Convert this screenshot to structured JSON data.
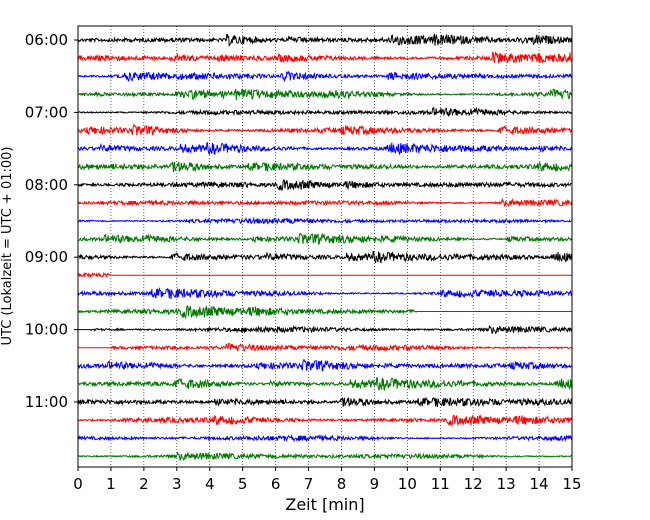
{
  "chart_data": {
    "type": "line",
    "subtype": "helicorder",
    "xlabel": "Zeit  [min]",
    "ylabel": "UTC (Lokalzeit = UTC + 01:00)",
    "xlim": [
      0,
      15
    ],
    "x_ticks": [
      0,
      1,
      2,
      3,
      4,
      5,
      6,
      7,
      8,
      9,
      10,
      11,
      12,
      13,
      14,
      15
    ],
    "x_tick_labels": [
      "0",
      "1",
      "2",
      "3",
      "4",
      "5",
      "6",
      "7",
      "8",
      "9",
      "10",
      "11",
      "12",
      "13",
      "14",
      "15"
    ],
    "y_tick_labels": [
      "06:00",
      "07:00",
      "08:00",
      "09:00",
      "10:00",
      "11:00"
    ],
    "trace_interval_minutes": 15,
    "trace_count": 24,
    "grid": "vertical dotted lines at each minute",
    "series_colors": [
      "#000000",
      "#ff0000",
      "#0000ff",
      "#007700"
    ],
    "traces": [
      {
        "start": "06:00",
        "color": "#000000"
      },
      {
        "start": "06:15",
        "color": "#ff0000"
      },
      {
        "start": "06:30",
        "color": "#0000ff"
      },
      {
        "start": "06:45",
        "color": "#007700"
      },
      {
        "start": "07:00",
        "color": "#000000"
      },
      {
        "start": "07:15",
        "color": "#ff0000"
      },
      {
        "start": "07:30",
        "color": "#0000ff"
      },
      {
        "start": "07:45",
        "color": "#007700"
      },
      {
        "start": "08:00",
        "color": "#000000"
      },
      {
        "start": "08:15",
        "color": "#ff0000"
      },
      {
        "start": "08:30",
        "color": "#0000ff"
      },
      {
        "start": "08:45",
        "color": "#007700"
      },
      {
        "start": "09:00",
        "color": "#000000"
      },
      {
        "start": "09:15",
        "color": "#ff0000",
        "quiet_from_min": 1.0
      },
      {
        "start": "09:30",
        "color": "#0000ff"
      },
      {
        "start": "09:45",
        "color": "#007700",
        "quiet_from_min": 10.3
      },
      {
        "start": "10:00",
        "color": "#000000",
        "quiet_until_min": 0.4
      },
      {
        "start": "10:15",
        "color": "#ff0000",
        "quiet_until_min": 1.0
      },
      {
        "start": "10:30",
        "color": "#0000ff"
      },
      {
        "start": "10:45",
        "color": "#007700"
      },
      {
        "start": "11:00",
        "color": "#000000"
      },
      {
        "start": "11:15",
        "color": "#ff0000"
      },
      {
        "start": "11:30",
        "color": "#0000ff"
      },
      {
        "start": "11:45",
        "color": "#007700"
      }
    ]
  }
}
